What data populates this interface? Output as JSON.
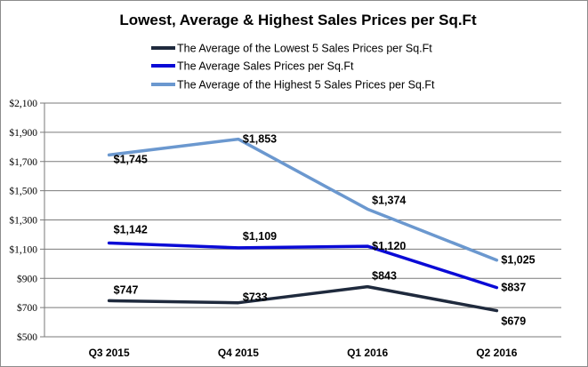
{
  "chart_data": {
    "type": "line",
    "title": "Lowest, Average & Highest Sales Prices per Sq.Ft",
    "xlabel": "",
    "ylabel": "",
    "categories": [
      "Q3 2015",
      "Q4 2015",
      "Q1 2016",
      "Q2 2016"
    ],
    "ylim": [
      500,
      2100
    ],
    "yticks": [
      500,
      700,
      900,
      1100,
      1300,
      1500,
      1700,
      1900,
      2100
    ],
    "ytick_labels": [
      "$500",
      "$700",
      "$900",
      "$1,100",
      "$1,300",
      "$1,500",
      "$1,700",
      "$1,900",
      "$2,100"
    ],
    "grid": true,
    "legend_position": "top",
    "series": [
      {
        "name": "The Average of the Lowest 5 Sales Prices per Sq.Ft",
        "values": [
          747,
          733,
          843,
          679
        ],
        "labels": [
          "$747",
          "$733",
          "$843",
          "$679"
        ],
        "color": "#1f2a3d"
      },
      {
        "name": "The Average Sales Prices per Sq.Ft",
        "values": [
          1142,
          1109,
          1120,
          837
        ],
        "labels": [
          "$1,142",
          "$1,109",
          "$1,120",
          "$837"
        ],
        "color": "#0a0ad6"
      },
      {
        "name": "The Average of the Highest 5 Sales Prices per Sq.Ft",
        "values": [
          1745,
          1853,
          1374,
          1025
        ],
        "labels": [
          "$1,745",
          "$1,853",
          "$1,374",
          "$1,025"
        ],
        "color": "#6b98cf"
      }
    ]
  }
}
